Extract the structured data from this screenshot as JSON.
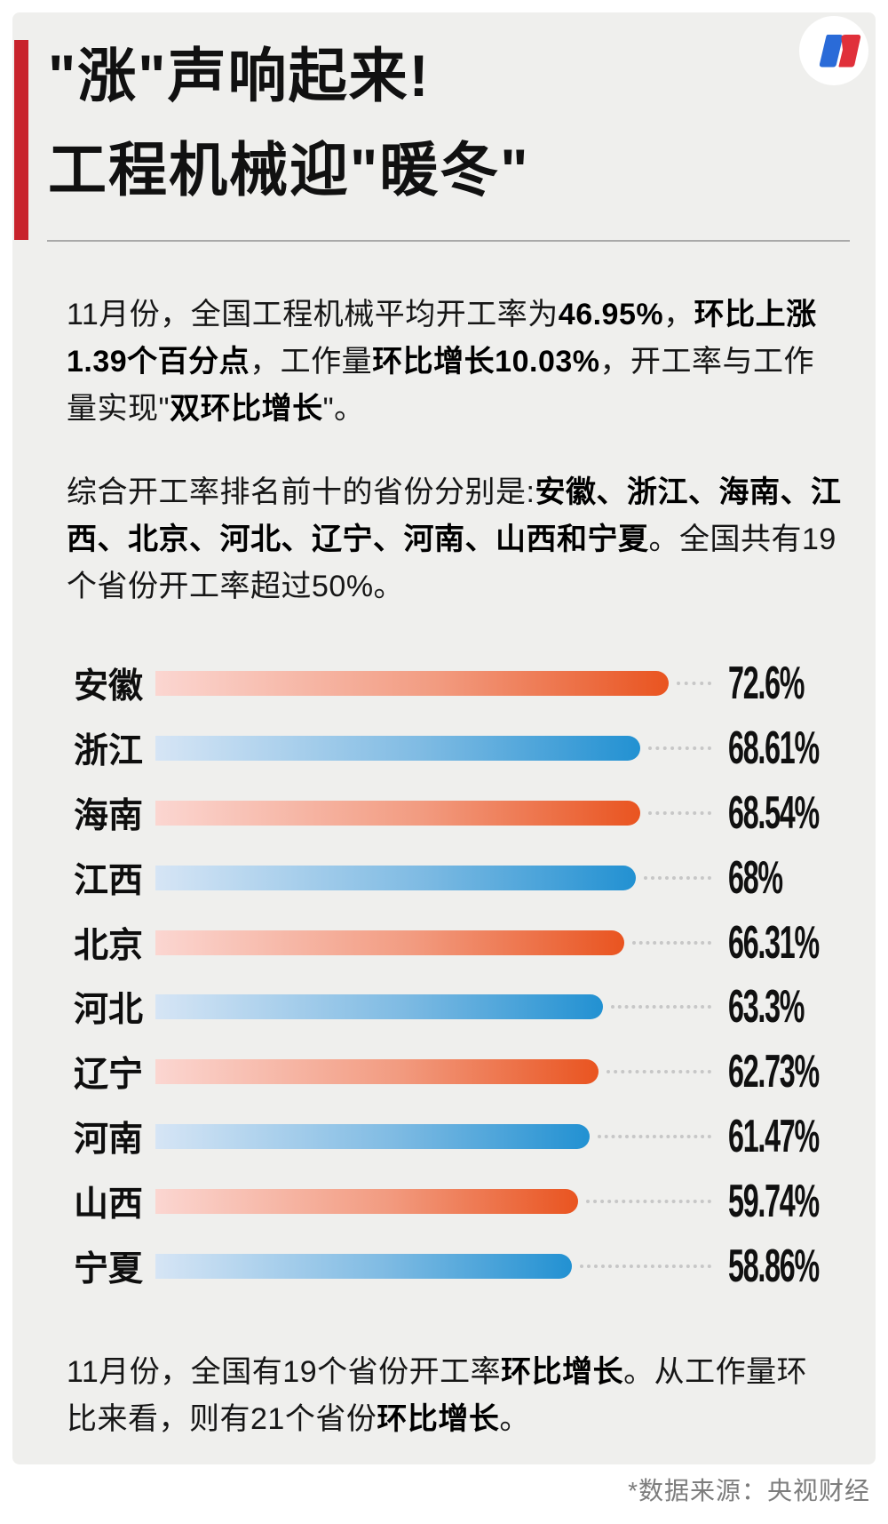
{
  "header": {
    "title_line1": "\"涨\"声响起来!",
    "title_line2": "工程机械迎\"暖冬\"",
    "logo_colors": {
      "blue": "#2A6BD8",
      "red": "#E0303A",
      "circle": "#FFFFFF"
    }
  },
  "paragraphs": {
    "p1": [
      {
        "text": "11月份，全国工程机械平均开工率为",
        "bold": false
      },
      {
        "text": "46.95%",
        "bold": true
      },
      {
        "text": "，",
        "bold": false
      },
      {
        "text": "环比上涨\n1.39个百分点",
        "bold": true
      },
      {
        "text": "，工作量",
        "bold": false
      },
      {
        "text": "环比增长10.03%",
        "bold": true
      },
      {
        "text": "，开工率与工作\n量实现\"",
        "bold": false
      },
      {
        "text": "双环比增长",
        "bold": true
      },
      {
        "text": "\"。",
        "bold": false
      }
    ],
    "p2": [
      {
        "text": "综合开工率排名前十的省份分别是:",
        "bold": false
      },
      {
        "text": "安徽、浙江、海南、江\n西、北京、河北、辽宁、河南、山西和宁夏",
        "bold": true
      },
      {
        "text": "。全国共有19\n个省份开工率超过50%。",
        "bold": false
      }
    ],
    "p3": [
      {
        "text": "11月份，全国有19个省份开工率",
        "bold": false
      },
      {
        "text": "环比增长",
        "bold": true
      },
      {
        "text": "。从工作量环\n比来看，则有21个省份",
        "bold": false
      },
      {
        "text": "环比增长",
        "bold": true
      },
      {
        "text": "。",
        "bold": false
      }
    ]
  },
  "chart_data": {
    "type": "bar",
    "orientation": "horizontal",
    "categories": [
      "安徽",
      "浙江",
      "海南",
      "江西",
      "北京",
      "河北",
      "辽宁",
      "河南",
      "山西",
      "宁夏"
    ],
    "values": [
      72.6,
      68.61,
      68.54,
      68,
      66.31,
      63.3,
      62.73,
      61.47,
      59.74,
      58.86
    ],
    "value_labels": [
      "72.6%",
      "68.61%",
      "68.54%",
      "68%",
      "66.31%",
      "63.3%",
      "62.73%",
      "61.47%",
      "59.74%",
      "58.86%"
    ],
    "xlim": [
      0,
      72.6
    ],
    "grid": false,
    "legend": false,
    "bar_color_pattern": [
      "orange",
      "blue"
    ],
    "orange_gradient": [
      "#FBD6D1",
      "#E95420"
    ],
    "blue_gradient": [
      "#D6E5F5",
      "#2291D2"
    ],
    "dotted_leader_color": "#C7C7C7"
  },
  "footer": {
    "source_note": "*数据来源：央视财经"
  },
  "colors": {
    "card_background": "#EFEFED",
    "page_background": "#FFFFFF",
    "accent_bar": "#C8232C",
    "divider": "#A9A9A9",
    "footer_text": "#7D7D7D",
    "text": "#161616"
  }
}
